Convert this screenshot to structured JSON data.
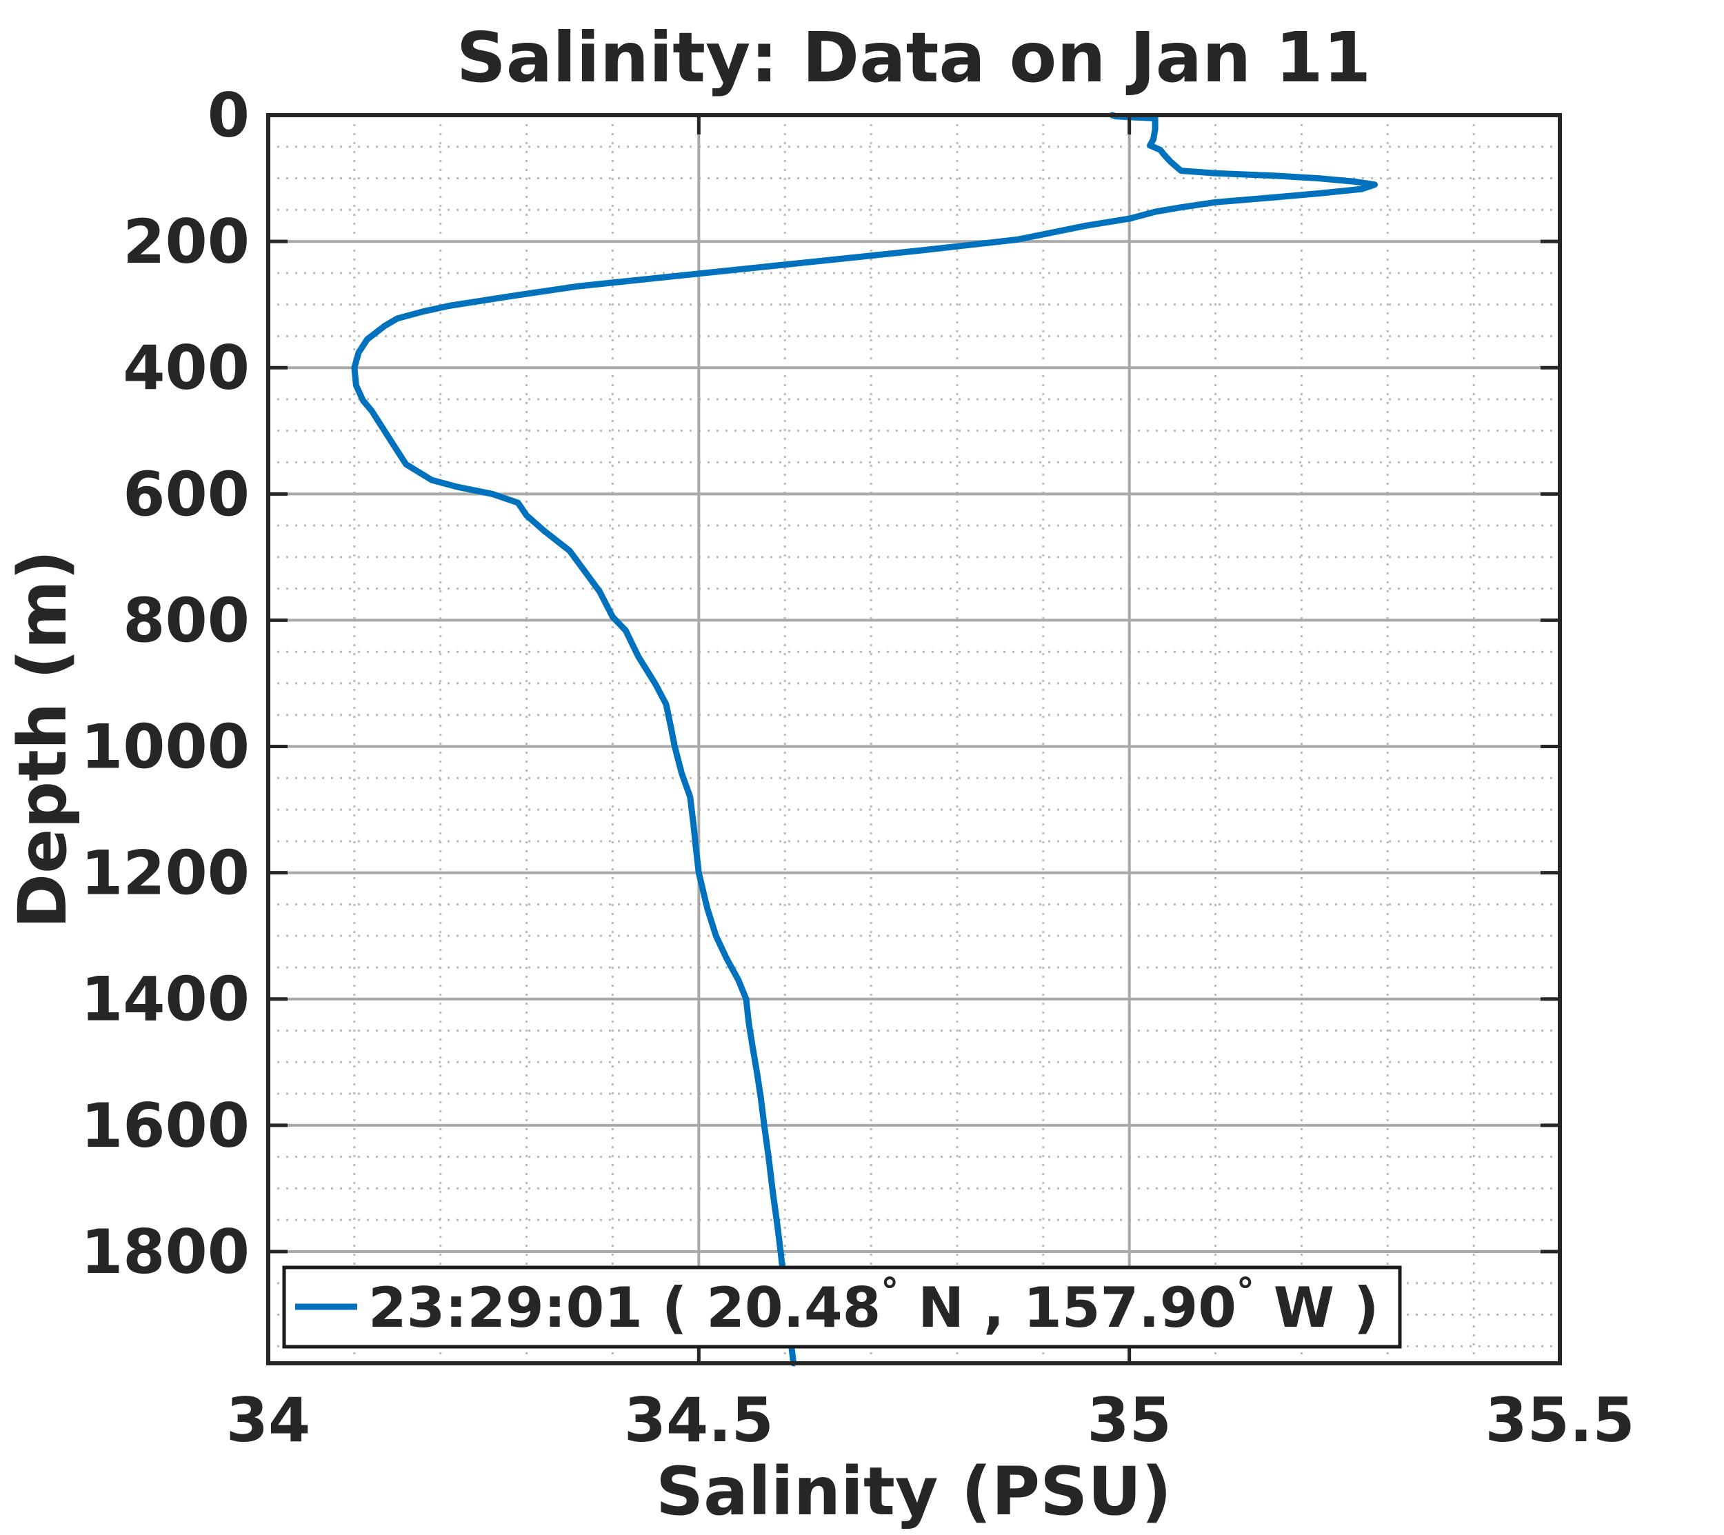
{
  "figure": {
    "background": "#ffffff"
  },
  "chart_data": {
    "type": "line",
    "title": "Salinity: Data on Jan 11",
    "xlabel": "Salinity (PSU)",
    "ylabel": "Depth (m)",
    "xlim": [
      34,
      35.5
    ],
    "ylim": [
      0,
      1977
    ],
    "y_axis_inverted": true,
    "x_tick_values": [
      34,
      34.5,
      35,
      35.5
    ],
    "x_tick_labels": [
      "34",
      "34.5",
      "35",
      "35.5"
    ],
    "y_tick_values": [
      0,
      200,
      400,
      600,
      800,
      1000,
      1200,
      1400,
      1600,
      1800
    ],
    "y_tick_labels": [
      "0",
      "200",
      "400",
      "600",
      "800",
      "1000",
      "1200",
      "1400",
      "1600",
      "1800"
    ],
    "x_minor_step": 0.1,
    "y_minor_step": 50,
    "grid": {
      "major": true,
      "minor": true,
      "box": true
    },
    "legend": {
      "location": "southwest-inside",
      "entries": [
        {
          "label_plain": "23:29:01 ( 20.48° N , 157.90° W )",
          "label_parts": {
            "pre": "23:29:01 ( 20.48",
            "deg1": "°",
            "mid": " N , 157.90",
            "deg2": "°",
            "post": " W )"
          },
          "line_color": "#0072BD"
        }
      ]
    },
    "series": [
      {
        "name": "23:29:01 ( 20.48° N , 157.90° W )",
        "color": "#0072BD",
        "x_field": "salinity_psu",
        "y_field": "depth_m",
        "points": [
          [
            34.98,
            0
          ],
          [
            34.985,
            2
          ],
          [
            35.03,
            5
          ],
          [
            35.03,
            22
          ],
          [
            35.028,
            38
          ],
          [
            35.024,
            48
          ],
          [
            35.036,
            55
          ],
          [
            35.04,
            62
          ],
          [
            35.048,
            74
          ],
          [
            35.06,
            88
          ],
          [
            35.1,
            92
          ],
          [
            35.17,
            96
          ],
          [
            35.22,
            100
          ],
          [
            35.26,
            105
          ],
          [
            35.285,
            110
          ],
          [
            35.27,
            117
          ],
          [
            35.22,
            124
          ],
          [
            35.17,
            130
          ],
          [
            35.1,
            138
          ],
          [
            35.06,
            146
          ],
          [
            35.03,
            153
          ],
          [
            35.0,
            164
          ],
          [
            34.95,
            175
          ],
          [
            34.87,
            197
          ],
          [
            34.76,
            214
          ],
          [
            34.62,
            234
          ],
          [
            34.5,
            251
          ],
          [
            34.36,
            271
          ],
          [
            34.28,
            287
          ],
          [
            34.21,
            302
          ],
          [
            34.18,
            311
          ],
          [
            34.15,
            322
          ],
          [
            34.135,
            334
          ],
          [
            34.115,
            355
          ],
          [
            34.105,
            376
          ],
          [
            34.1,
            400
          ],
          [
            34.102,
            428
          ],
          [
            34.11,
            452
          ],
          [
            34.12,
            468
          ],
          [
            34.135,
            500
          ],
          [
            34.15,
            532
          ],
          [
            34.16,
            553
          ],
          [
            34.19,
            578
          ],
          [
            34.22,
            589
          ],
          [
            34.26,
            600
          ],
          [
            34.29,
            614
          ],
          [
            34.3,
            634
          ],
          [
            34.32,
            658
          ],
          [
            34.35,
            690
          ],
          [
            34.37,
            727
          ],
          [
            34.385,
            755
          ],
          [
            34.4,
            795
          ],
          [
            34.415,
            816
          ],
          [
            34.43,
            858
          ],
          [
            34.45,
            902
          ],
          [
            34.462,
            933
          ],
          [
            34.468,
            972
          ],
          [
            34.472,
            1000
          ],
          [
            34.48,
            1042
          ],
          [
            34.49,
            1080
          ],
          [
            34.494,
            1125
          ],
          [
            34.497,
            1165
          ],
          [
            34.5,
            1200
          ],
          [
            34.51,
            1257
          ],
          [
            34.52,
            1300
          ],
          [
            34.532,
            1335
          ],
          [
            34.546,
            1370
          ],
          [
            34.555,
            1400
          ],
          [
            34.558,
            1438
          ],
          [
            34.562,
            1472
          ],
          [
            34.568,
            1520
          ],
          [
            34.572,
            1556
          ],
          [
            34.576,
            1600
          ],
          [
            34.581,
            1650
          ],
          [
            34.586,
            1706
          ],
          [
            34.591,
            1756
          ],
          [
            34.595,
            1800
          ],
          [
            34.6,
            1862
          ],
          [
            34.605,
            1922
          ],
          [
            34.61,
            1977
          ]
        ]
      }
    ]
  },
  "colors": {
    "line": "#0072BD",
    "spine": "#262626",
    "tick": "#262626",
    "text": "#262626",
    "grid_major": "#a9a9a9",
    "grid_minor": "#bababa",
    "legend_bg": "#ffffff",
    "legend_border": "#1a1a1a"
  }
}
